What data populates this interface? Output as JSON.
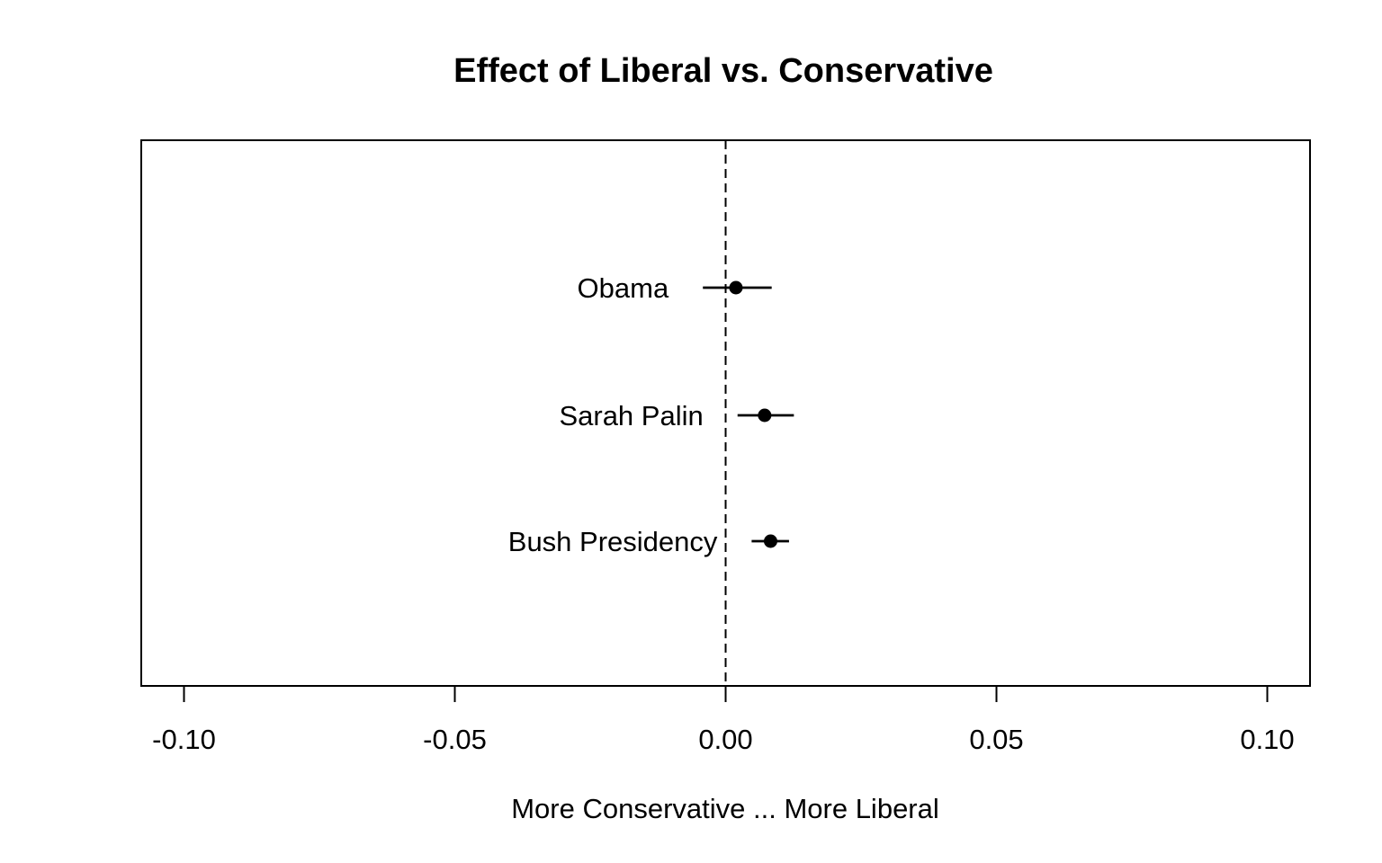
{
  "figure": {
    "background": "#ffffff"
  },
  "chart_data": {
    "type": "scatter",
    "subtype": "coefficient-dot-plot-with-ci",
    "title": "Effect of Liberal vs. Conservative",
    "xlabel": "More Conservative ... More Liberal",
    "ylabel": "",
    "grid": false,
    "legend_position": "none",
    "xlim": [
      -0.108,
      0.108
    ],
    "xticks": [
      "-0.10",
      "-0.05",
      "0.00",
      "0.05",
      "0.10"
    ],
    "xtick_values": [
      -0.1,
      -0.05,
      0.0,
      0.05,
      0.1
    ],
    "reference_line_x": 0,
    "reference_line_style": "dashed",
    "categories": [
      "Obama",
      "Sarah Palin",
      "Bush Presidency"
    ],
    "points": [
      {
        "label": "Obama",
        "estimate": 0.0019,
        "ci_low": -0.0042,
        "ci_high": 0.0085
      },
      {
        "label": "Sarah Palin",
        "estimate": 0.0072,
        "ci_low": 0.0022,
        "ci_high": 0.0126
      },
      {
        "label": "Bush Presidency",
        "estimate": 0.0083,
        "ci_low": 0.0048,
        "ci_high": 0.0117
      }
    ],
    "colors": {
      "foreground": "#000000",
      "background": "#ffffff"
    }
  }
}
